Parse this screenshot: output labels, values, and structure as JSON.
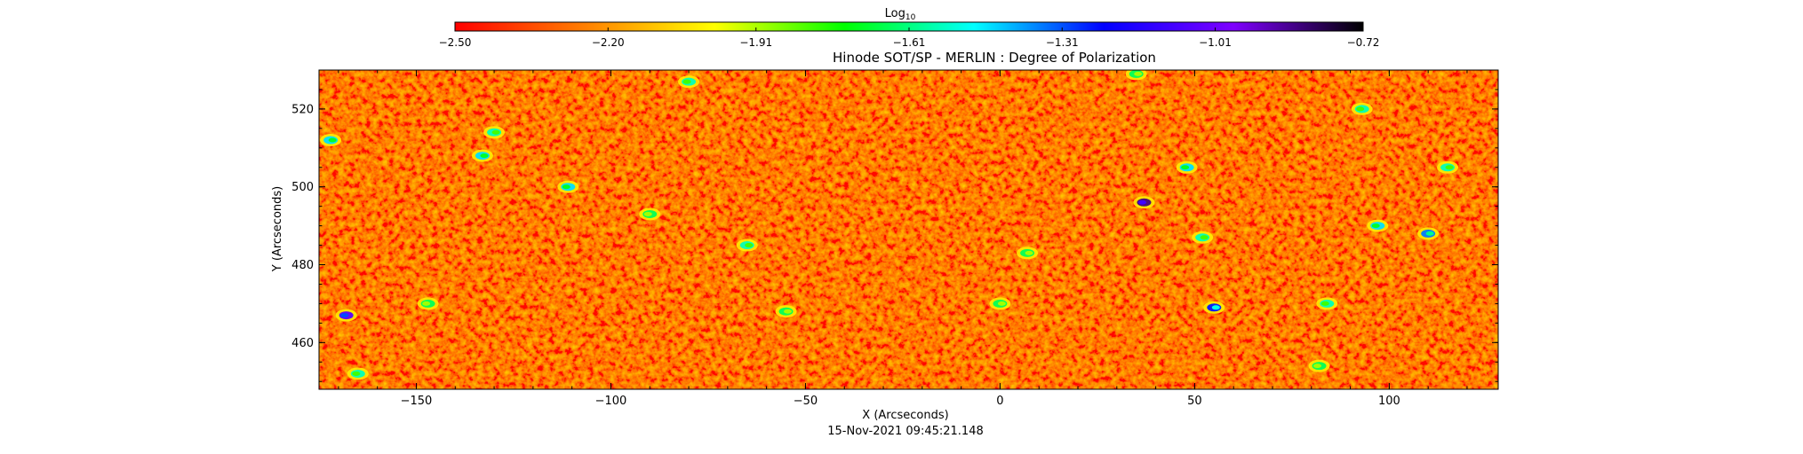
{
  "chart_data": {
    "type": "heatmap",
    "title": "Hinode SOT/SP - MERLIN : Degree of Polarization",
    "xlabel": "X (Arcseconds)",
    "ylabel": "Y (Arcseconds)",
    "footer": "15-Nov-2021 09:45:21.148",
    "xlim": [
      -175,
      128
    ],
    "ylim": [
      448,
      530
    ],
    "x_ticks": [
      -150,
      -100,
      -50,
      0,
      50,
      100
    ],
    "x_tick_labels": [
      "−150",
      "−100",
      "−50",
      "0",
      "50",
      "100"
    ],
    "y_ticks": [
      460,
      480,
      500,
      520
    ],
    "y_tick_labels": [
      "460",
      "480",
      "500",
      "520"
    ],
    "colorbar": {
      "label_base": "Log",
      "label_sub": "10",
      "range": [
        -2.5,
        -0.72
      ],
      "ticks": [
        -2.5,
        -2.2,
        -1.91,
        -1.61,
        -1.31,
        -1.01,
        -0.72
      ],
      "tick_labels": [
        "−2.50",
        "−2.20",
        "−1.91",
        "−1.61",
        "−1.31",
        "−1.01",
        "−0.72"
      ],
      "colors": [
        "#ff0000",
        "#ff7f00",
        "#ffff00",
        "#00ff00",
        "#00ffff",
        "#0000ff",
        "#7f00ff",
        "#000000"
      ]
    },
    "features": [
      {
        "x": 37,
        "y": 496,
        "value": -1.1
      },
      {
        "x": 55,
        "y": 469,
        "value": -1.5
      },
      {
        "x": -168,
        "y": 467,
        "value": -1.3
      },
      {
        "x": -133,
        "y": 508,
        "value": -1.7
      },
      {
        "x": -111,
        "y": 500,
        "value": -1.7
      },
      {
        "x": -65,
        "y": 485,
        "value": -1.8
      },
      {
        "x": 48,
        "y": 505,
        "value": -1.7
      },
      {
        "x": 52,
        "y": 487,
        "value": -1.8
      },
      {
        "x": 97,
        "y": 490,
        "value": -1.7
      },
      {
        "x": 110,
        "y": 488,
        "value": -1.6
      },
      {
        "x": 84,
        "y": 470,
        "value": -1.8
      },
      {
        "x": -130,
        "y": 514,
        "value": -1.8
      },
      {
        "x": -80,
        "y": 527,
        "value": -1.8
      },
      {
        "x": -172,
        "y": 512,
        "value": -1.7
      },
      {
        "x": -147,
        "y": 470,
        "value": -1.9
      },
      {
        "x": -55,
        "y": 468,
        "value": -1.9
      },
      {
        "x": 93,
        "y": 520,
        "value": -1.8
      },
      {
        "x": 35,
        "y": 529,
        "value": -1.9
      },
      {
        "x": 82,
        "y": 454,
        "value": -1.9
      },
      {
        "x": 115,
        "y": 505,
        "value": -1.8
      },
      {
        "x": -90,
        "y": 493,
        "value": -1.9
      },
      {
        "x": 0,
        "y": 470,
        "value": -1.9
      },
      {
        "x": -165,
        "y": 452,
        "value": -1.8
      },
      {
        "x": 7,
        "y": 483,
        "value": -1.9
      }
    ]
  }
}
